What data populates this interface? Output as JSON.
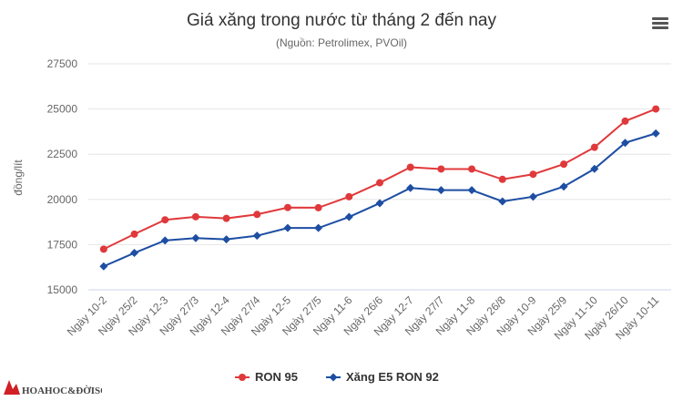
{
  "chart_data": {
    "type": "line",
    "title": "Giá xăng trong nước từ tháng 2 đến nay",
    "subtitle": "(Nguồn: Petrolimex, PVOil)",
    "ylabel": "đồng/lít",
    "xlabel": "",
    "ylim": [
      15000,
      27500
    ],
    "yticks": [
      15000,
      17500,
      20000,
      22500,
      25000,
      27500
    ],
    "grid": true,
    "legend_position": "bottom",
    "categories": [
      "Ngày 10-2",
      "Ngày 25/2",
      "Ngày 12-3",
      "Ngày 27/3",
      "Ngày 12-4",
      "Ngày 27/4",
      "Ngày 12-5",
      "Ngày 27/5",
      "Ngày 11-6",
      "Ngày 26/6",
      "Ngày 12-7",
      "Ngày 27/7",
      "Ngày 11-8",
      "Ngày 26/8",
      "Ngày 10-9",
      "Ngày 25/9",
      "Ngày 11-10",
      "Ngày 26/10",
      "Ngày 10-11"
    ],
    "series": [
      {
        "name": "RON 95",
        "color": "#e0393b",
        "marker": "circle",
        "values": [
          17250,
          18080,
          18870,
          19040,
          18950,
          19170,
          19550,
          19540,
          20150,
          20920,
          21780,
          21680,
          21680,
          21110,
          21390,
          21950,
          22880,
          24330,
          25000
        ]
      },
      {
        "name": "Xăng E5 RON 92",
        "color": "#1d4ea3",
        "marker": "diamond",
        "values": [
          16300,
          17040,
          17730,
          17860,
          17790,
          17990,
          18420,
          18420,
          19030,
          19790,
          20630,
          20510,
          20510,
          19890,
          20150,
          20710,
          21690,
          23130,
          23650
        ]
      }
    ]
  },
  "ui": {
    "menu_icon": "hamburger-menu-icon",
    "watermark_text": "KHOAHOC&ĐỜISỐNG"
  }
}
